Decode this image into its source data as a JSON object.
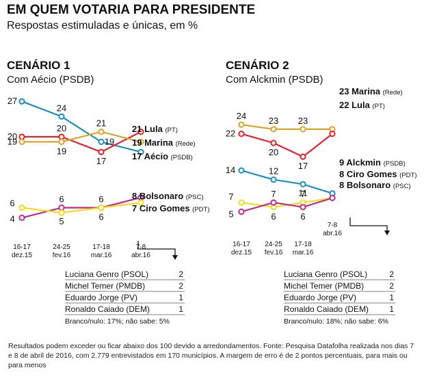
{
  "title": "EM QUEM VOTARIA PARA PRESIDENTE",
  "subtitle": "Respostas estimuladas e únicas, em %",
  "chart_data": [
    {
      "type": "line",
      "title": "CENÁRIO 1",
      "subtitle": "Com Aécio (PSDB)",
      "categories": [
        [
          "16-17",
          "dez.15"
        ],
        [
          "24-25",
          "fev.16"
        ],
        [
          "17-18",
          "mar.16"
        ],
        [
          "7-8",
          "abr.16"
        ]
      ],
      "ylim": [
        0,
        30
      ],
      "series": [
        {
          "name": "Aécio",
          "party": "(PSDB)",
          "color": "#1b8fc4",
          "values": [
            27,
            24,
            19,
            17
          ]
        },
        {
          "name": "Lula",
          "party": "(PT)",
          "color": "#e3222b",
          "values": [
            20,
            20,
            17,
            21
          ]
        },
        {
          "name": "Marina",
          "party": "(Rede)",
          "color": "#d8a626",
          "values": [
            19,
            19,
            21,
            19
          ]
        },
        {
          "name": "Bolsonaro",
          "party": "(PSC)",
          "color": "#c2288c",
          "values": [
            4,
            6,
            6,
            8
          ]
        },
        {
          "name": "Ciro Gomes",
          "party": "(PDT)",
          "color": "#f2dc1c",
          "values": [
            6,
            5,
            6,
            7
          ]
        }
      ],
      "others": [
        [
          "Luciana Genro (PSOL)",
          "2"
        ],
        [
          "Michel Temer (PMDB)",
          "2"
        ],
        [
          "Eduardo Jorge (PV)",
          "1"
        ],
        [
          "Ronaldo Caiado (DEM)",
          "1"
        ]
      ],
      "note": "Branco/nulo: 17%; não sabe: 5%"
    },
    {
      "type": "line",
      "title": "CENÁRIO 2",
      "subtitle": "Com Alckmin (PSDB)",
      "categories": [
        [
          "16-17",
          "dez.15"
        ],
        [
          "24-25",
          "fev.16"
        ],
        [
          "17-18",
          "mar.16"
        ],
        [
          "7-8",
          "abr.16"
        ]
      ],
      "ylim": [
        0,
        30
      ],
      "series": [
        {
          "name": "Marina",
          "party": "(Rede)",
          "color": "#d8a626",
          "values": [
            24,
            23,
            23,
            23
          ]
        },
        {
          "name": "Lula",
          "party": "(PT)",
          "color": "#e3222b",
          "values": [
            22,
            20,
            17,
            22
          ]
        },
        {
          "name": "Alckmin",
          "party": "(PSDB)",
          "color": "#1b8fc4",
          "values": [
            14,
            12,
            11,
            9
          ]
        },
        {
          "name": "Ciro Gomes",
          "party": "(PDT)",
          "color": "#f2dc1c",
          "values": [
            7,
            6,
            7,
            8
          ]
        },
        {
          "name": "Bolsonaro",
          "party": "(PSC)",
          "color": "#c2288c",
          "values": [
            5,
            7,
            6,
            8
          ]
        }
      ],
      "others": [
        [
          "Luciana Genro (PSOL)",
          "2"
        ],
        [
          "Michel Temer (PMDB)",
          "2"
        ],
        [
          "Eduardo Jorge (PV)",
          "1"
        ],
        [
          "Ronaldo Caiado (DEM)",
          "1"
        ]
      ],
      "note": "Branco/nulo: 18%; não sabe: 6%"
    }
  ],
  "footnote": "Resultados podem exceder ou ficar abaixo dos 100 devido a arredondamentos. Fonte: Pesquisa Datafolha realizada nos dias 7 e 8 de abril de 2016, com 2.779 entrevistados em 170 municípios. A margem de erro é de 2 pontos percentuais, para mais ou para menos"
}
